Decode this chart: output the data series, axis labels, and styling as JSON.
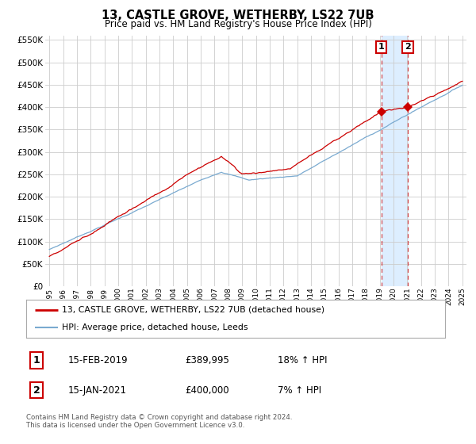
{
  "title": "13, CASTLE GROVE, WETHERBY, LS22 7UB",
  "subtitle": "Price paid vs. HM Land Registry's House Price Index (HPI)",
  "red_label": "13, CASTLE GROVE, WETHERBY, LS22 7UB (detached house)",
  "blue_label": "HPI: Average price, detached house, Leeds",
  "transaction1_label": "1",
  "transaction1_date": "15-FEB-2019",
  "transaction1_price": "£389,995",
  "transaction1_hpi": "18% ↑ HPI",
  "transaction2_label": "2",
  "transaction2_date": "15-JAN-2021",
  "transaction2_price": "£400,000",
  "transaction2_hpi": "7% ↑ HPI",
  "footer": "Contains HM Land Registry data © Crown copyright and database right 2024.\nThis data is licensed under the Open Government Licence v3.0.",
  "ylim": [
    0,
    560000
  ],
  "yticks": [
    0,
    50000,
    100000,
    150000,
    200000,
    250000,
    300000,
    350000,
    400000,
    450000,
    500000,
    550000
  ],
  "year_start": 1995,
  "year_end": 2025,
  "transaction1_year": 2019.12,
  "transaction2_year": 2021.04,
  "red_color": "#cc0000",
  "blue_color": "#7aaad0",
  "shade_color": "#ddeeff",
  "dashed_color": "#cc0000",
  "bg_color": "#ffffff",
  "grid_color": "#cccccc",
  "marker1_year": 2019.12,
  "marker1_value": 389995,
  "marker2_year": 2021.04,
  "marker2_value": 400000
}
